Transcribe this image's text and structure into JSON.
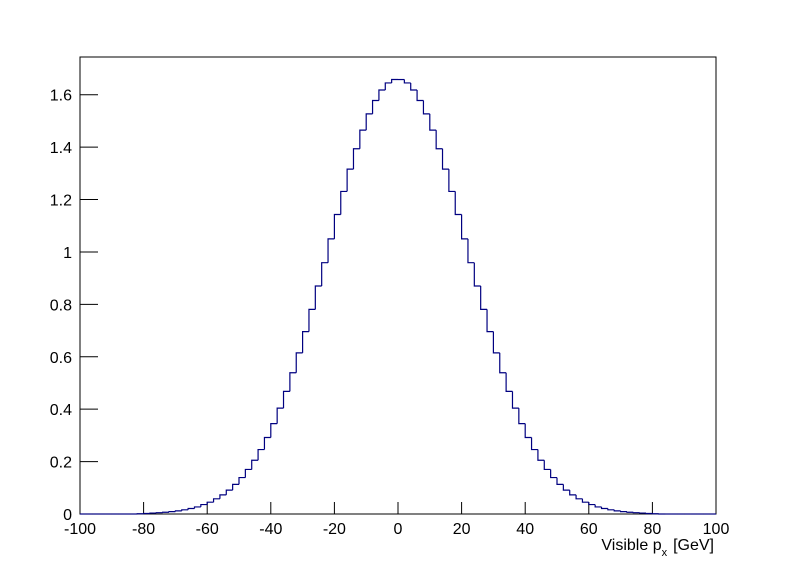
{
  "chart_data": {
    "type": "histogram",
    "x_label": [
      "Visible p",
      "x",
      "[GeV]"
    ],
    "color": "#000080",
    "bins": [
      -100,
      -98,
      -96,
      -94,
      -92,
      -90,
      -88,
      -86,
      -84,
      -82,
      -80,
      -78,
      -76,
      -74,
      -72,
      -70,
      -68,
      -66,
      -64,
      -62,
      -60,
      -58,
      -56,
      -54,
      -52,
      -50,
      -48,
      -46,
      -44,
      -42,
      -40,
      -38,
      -36,
      -34,
      -32,
      -30,
      -28,
      -26,
      -24,
      -22,
      -20,
      -18,
      -16,
      -14,
      -12,
      -10,
      -8,
      -6,
      -4,
      -2,
      0,
      2,
      4,
      6,
      8,
      10,
      12,
      14,
      16,
      18,
      20,
      22,
      24,
      26,
      28,
      30,
      32,
      34,
      36,
      38,
      40,
      42,
      44,
      46,
      48,
      50,
      52,
      54,
      56,
      58,
      60,
      62,
      64,
      66,
      68,
      70,
      72,
      74,
      76,
      78,
      80,
      82,
      84,
      86,
      88,
      90,
      92,
      94,
      96,
      98,
      100
    ],
    "values": [
      0,
      0,
      0,
      0,
      0,
      0,
      0,
      0,
      0,
      0.001,
      0.002,
      0.0036,
      0.005,
      0.0068,
      0.009,
      0.012,
      0.016,
      0.021,
      0.027,
      0.036,
      0.045,
      0.058,
      0.073,
      0.091,
      0.113,
      0.139,
      0.17,
      0.205,
      0.246,
      0.292,
      0.345,
      0.404,
      0.468,
      0.539,
      0.615,
      0.696,
      0.781,
      0.87,
      0.959,
      1.05,
      1.143,
      1.231,
      1.316,
      1.394,
      1.465,
      1.527,
      1.578,
      1.618,
      1.645,
      1.658,
      1.658,
      1.645,
      1.618,
      1.578,
      1.527,
      1.465,
      1.394,
      1.316,
      1.231,
      1.143,
      1.05,
      0.959,
      0.87,
      0.781,
      0.696,
      0.615,
      0.539,
      0.468,
      0.404,
      0.345,
      0.292,
      0.246,
      0.205,
      0.17,
      0.139,
      0.113,
      0.091,
      0.073,
      0.058,
      0.045,
      0.036,
      0.027,
      0.021,
      0.016,
      0.012,
      0.009,
      0.0068,
      0.005,
      0.0036,
      0.002,
      0.001,
      0,
      0,
      0,
      0,
      0,
      0,
      0,
      0,
      0
    ],
    "xlim": [
      -100,
      100
    ],
    "xticks": [
      -100,
      -80,
      -60,
      -40,
      -20,
      0,
      20,
      40,
      60,
      80,
      100
    ],
    "ylim": [
      0,
      1.744
    ],
    "yticks": [
      0,
      0.2,
      0.4,
      0.6,
      0.8,
      1,
      1.2,
      1.4,
      1.6
    ]
  }
}
